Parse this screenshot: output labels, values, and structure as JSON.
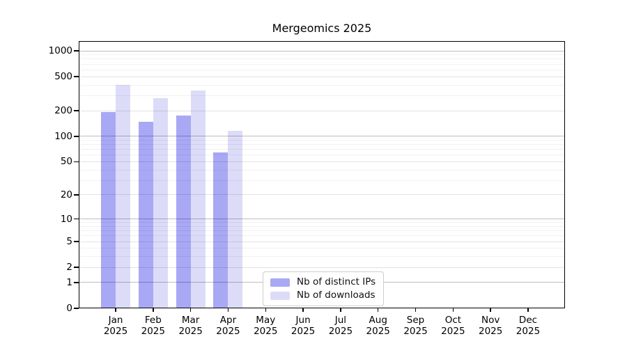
{
  "chart_data": {
    "type": "bar",
    "title": "Mergeomics 2025",
    "categories": [
      "Jan",
      "Feb",
      "Mar",
      "Apr",
      "May",
      "Jun",
      "Jul",
      "Aug",
      "Sep",
      "Oct",
      "Nov",
      "Dec"
    ],
    "year": "2025",
    "series": [
      {
        "name": "Nb of distinct IPs",
        "color": "#a8a8f5",
        "values": [
          194,
          148,
          175,
          65,
          0,
          0,
          0,
          0,
          0,
          0,
          0,
          0
        ]
      },
      {
        "name": "Nb of downloads",
        "color": "#dcdcf9",
        "values": [
          402,
          280,
          345,
          116,
          0,
          0,
          0,
          0,
          0,
          0,
          0,
          0
        ]
      }
    ],
    "yticks": [
      0,
      1,
      2,
      5,
      10,
      20,
      50,
      100,
      200,
      500,
      1000
    ],
    "yscale": "log1p",
    "ylim": [
      0,
      1300
    ],
    "xlabel": "",
    "ylabel": "",
    "grid": true,
    "legend_position": "lower-center-inside"
  }
}
